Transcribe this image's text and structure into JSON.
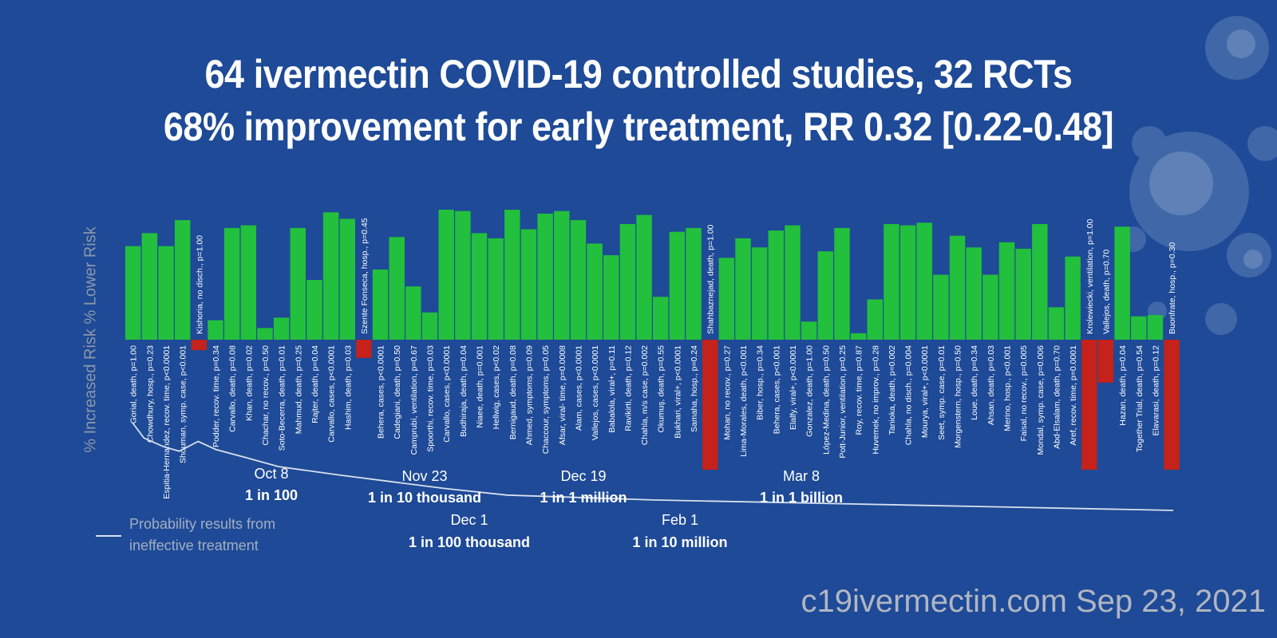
{
  "title_line1": "64 ivermectin COVID-19 controlled studies, 32 RCTs",
  "title_line2": "68% improvement for early treatment, RR 0.32 [0.22-0.48]",
  "y_axis_label": "% Increased Risk % Lower Risk",
  "legend_text": "Probability results from ineffective treatment",
  "footer": "c19ivermectin.com Sep 23, 2021",
  "colors": {
    "background": "#1e4a97",
    "positive": "#22c03c",
    "negative": "#c4221a",
    "probability_line": "#d8e0ee"
  },
  "milestones": [
    {
      "date": "Oct 8",
      "odds": "1 in 100"
    },
    {
      "date": "Nov 23",
      "odds": "1 in 10 thousand"
    },
    {
      "date": "Dec 19",
      "odds": "1 in 1 million"
    },
    {
      "date": "Mar 8",
      "odds": "1 in 1 billion"
    },
    {
      "date": "Dec 1",
      "odds": "1 in 100 thousand"
    },
    {
      "date": "Feb 1",
      "odds": "1 in 10 million"
    }
  ],
  "chart_data": {
    "type": "bar",
    "ylabel": "% Increased Risk % Lower Risk",
    "values": [
      72,
      82,
      72,
      92,
      -8,
      15,
      86,
      88,
      9,
      17,
      86,
      46,
      98,
      93,
      -14,
      54,
      79,
      41,
      21,
      100,
      99,
      82,
      78,
      100,
      85,
      97,
      99,
      92,
      74,
      65,
      89,
      96,
      33,
      83,
      86,
      -100,
      63,
      78,
      71,
      84,
      88,
      14,
      68,
      86,
      5,
      31,
      89,
      88,
      90,
      50,
      80,
      71,
      50,
      75,
      70,
      89,
      25,
      64,
      -100,
      -33,
      87,
      18,
      19,
      -100
    ],
    "labels": [
      "Gorial, death, p=1.00",
      "Chowdhury, hosp., p=0.23",
      "Espitia-Hernandez, recov. time, p<0.0001",
      "Shouman, symp. case, p<0.001",
      "Kishoria, no disch., p=1.00",
      "Podder, recov. time, p=0.34",
      "Carvallo, death, p=0.08",
      "Khan, death, p=0.02",
      "Chachar, no recov., p=0.50",
      "Soto-Becerra, death, p=0.01",
      "Mahmud, death, p=0.25",
      "Rajter, death, p=0.04",
      "Carvallo, cases, p<0.0001",
      "Hashim, death, p=0.03",
      "Szente Fonseca, hosp., p=0.45",
      "Behera, cases, p<0.0001",
      "Cadegiani, death, p=0.50",
      "Camprubí, ventilation, p=0.67",
      "Spoorthi, recov. time, p=0.03",
      "Carvallo, cases, p<0.0001",
      "Budhiraja, death, p=0.04",
      "Niaee, death, p=0.001",
      "Hellwig, cases, p<0.02",
      "Bernigaud, death, p=0.08",
      "Ahmed, symptoms, p=0.09",
      "Chaccour, symptoms, p=0.05",
      "Afsar, viral- time, p=0.0008",
      "Alam, cases, p<0.0001",
      "Vallejos, cases, p<0.0001",
      "Babalola, viral+, p=0.11",
      "Ravikirti, death, p=0.12",
      "Chahla, m/s case, p=0.002",
      "Okumuş, death, p=0.55",
      "Bukhari, viral+, p<0.0001",
      "Samaha, hosp., p=0.24",
      "Shahbaznejad, death, p=1.00",
      "Mohan, no recov., p=0.27",
      "Lima-Morales, death, p<0.001",
      "Biber, hosp., p=0.34",
      "Behera, cases, p<0.001",
      "Elalfy, viral+, p<0.0001",
      "Gonzalez, death, p=1.00",
      "López-Medina, death, p=0.50",
      "Pott-Junior, ventilation, p=0.25",
      "Roy, recov. time, p=0.87",
      "Huvemek, no improv., p=0.28",
      "Tanioka, death, p=0.002",
      "Chahla, no disch., p=0.004",
      "Mourya, viral+, p<0.0001",
      "Seet, symp. case, p=0.01",
      "Morgenstern, hosp., p=0.50",
      "Loue, death, p=0.34",
      "Ahsan, death, p=0.03",
      "Merino, hosp., p<0.001",
      "Faisal, no recov., p=0.005",
      "Mondal, symp. case, p=0.006",
      "Abd-Elsalam, death, p=0.70",
      "Aref, recov. time, p=0.0001",
      "Krolewiecki, ventilation, p=1.00",
      "Vallejos, death, p=0.70",
      "Hazan, death, p=0.04",
      "Together Trial, death, p=0.54",
      "Elavarasi, death, p=0.12",
      "Buonfrate, hosp., p=0.30"
    ],
    "probability_line": [
      1,
      0.2,
      0.08,
      0.05,
      0.14,
      0.06,
      0.025,
      0.01,
      0.004,
      0.002,
      0.001,
      0.0005,
      0.0003,
      0.0001
    ],
    "grid": false,
    "legend_position": "bottom-left"
  }
}
